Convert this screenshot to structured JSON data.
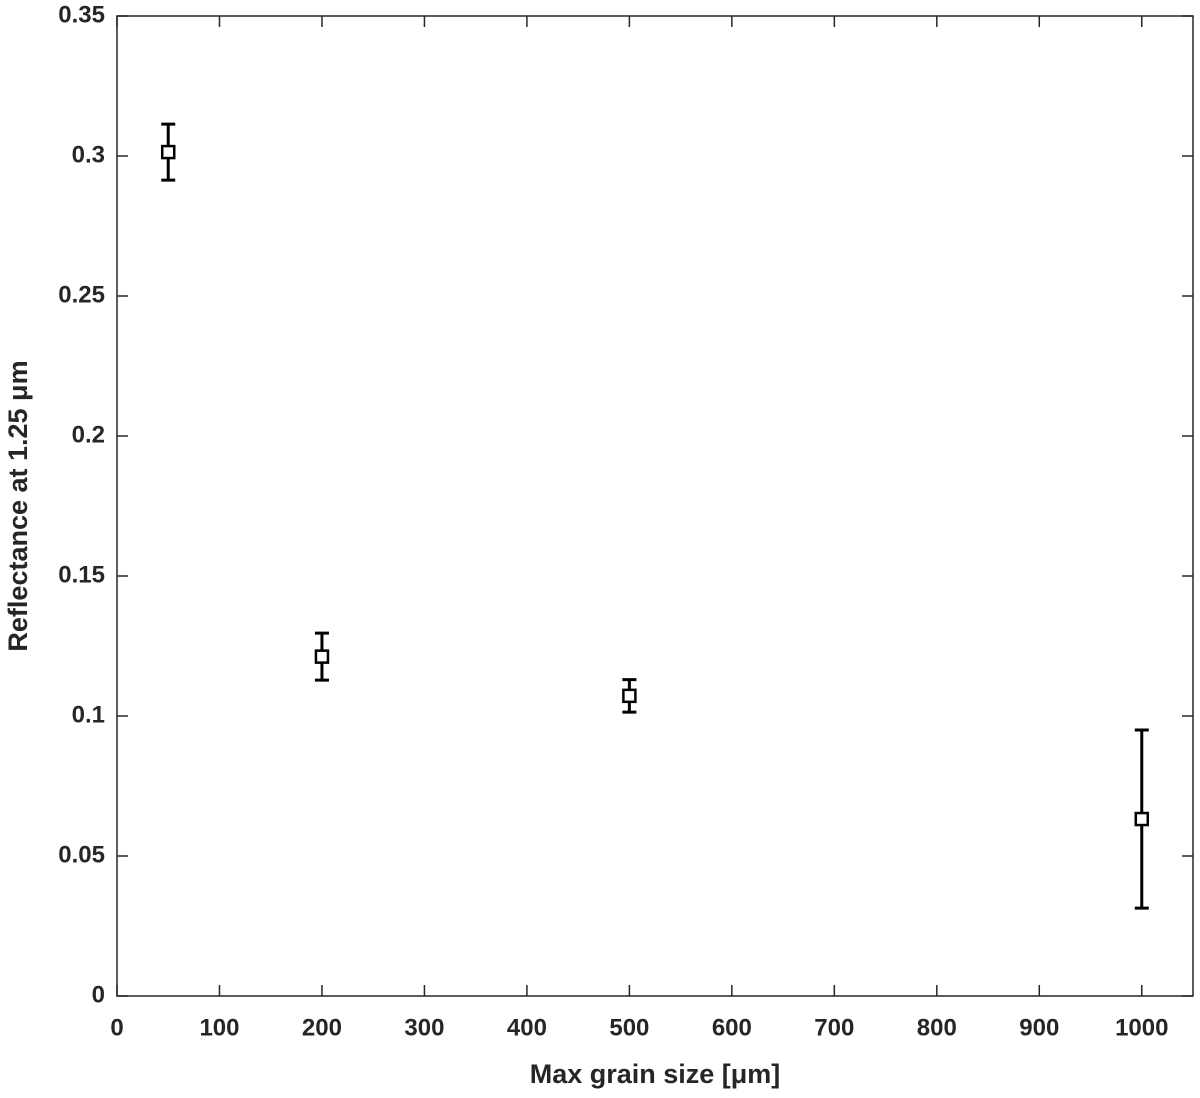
{
  "chart_data": {
    "type": "errorbar",
    "xlabel": "Max grain size [μm]",
    "ylabel": "Reflectance at 1.25 μm",
    "x": [
      50,
      200,
      500,
      1000
    ],
    "values": [
      0.3014,
      0.1212,
      0.1072,
      0.0632
    ],
    "errors": [
      0.01,
      0.0084,
      0.0058,
      0.0318
    ],
    "color": "#000000",
    "xlim": [
      0,
      1050
    ],
    "xticks": [
      0,
      100,
      200,
      300,
      400,
      500,
      600,
      700,
      800,
      900,
      1000
    ],
    "ylim": [
      0,
      0.35
    ],
    "yticks": [
      0,
      0.05,
      0.1,
      0.15,
      0.2,
      0.25,
      0.3,
      0.35
    ],
    "grid": false
  }
}
